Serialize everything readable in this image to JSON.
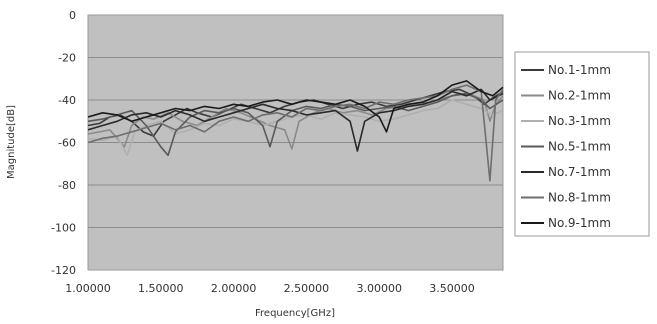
{
  "chart_data": {
    "type": "line",
    "title": "",
    "xlabel": "Frequency[GHz]",
    "ylabel": "Magnitude[dB]",
    "xlim": [
      1.0,
      3.85
    ],
    "ylim": [
      -120,
      0
    ],
    "x_ticks": [
      {
        "value": 1.0,
        "label": "1.00000"
      },
      {
        "value": 1.5,
        "label": "1.50000"
      },
      {
        "value": 2.0,
        "label": "2.00000"
      },
      {
        "value": 2.5,
        "label": "2.50000"
      },
      {
        "value": 3.0,
        "label": "3.00000"
      },
      {
        "value": 3.5,
        "label": "3.50000"
      }
    ],
    "y_ticks": [
      {
        "value": 0,
        "label": "0"
      },
      {
        "value": -20,
        "label": "-20"
      },
      {
        "value": -40,
        "label": "-40"
      },
      {
        "value": -60,
        "label": "-60"
      },
      {
        "value": -80,
        "label": "-80"
      },
      {
        "value": -100,
        "label": "-100"
      },
      {
        "value": -120,
        "label": "-120"
      }
    ],
    "grid": true,
    "legend_position": "right",
    "plot_background": "#c0c0c0",
    "series": [
      {
        "name": "No.1-1mm",
        "color": "#3a3a3a",
        "x": [
          1.0,
          1.08,
          1.15,
          1.22,
          1.3,
          1.38,
          1.45,
          1.52,
          1.6,
          1.68,
          1.75,
          1.85,
          1.95,
          2.05,
          2.15,
          2.25,
          2.35,
          2.45,
          2.55,
          2.65,
          2.75,
          2.85,
          2.95,
          3.05,
          3.15,
          3.25,
          3.35,
          3.45,
          3.55,
          3.65,
          3.72,
          3.78,
          3.85
        ],
        "y": [
          -52,
          -51,
          -48,
          -47,
          -50,
          -55,
          -57,
          -50,
          -47,
          -44,
          -46,
          -48,
          -45,
          -42,
          -44,
          -46,
          -43,
          -41,
          -40,
          -42,
          -44,
          -42,
          -41,
          -43,
          -42,
          -40,
          -38,
          -36,
          -35,
          -38,
          -42,
          -39,
          -36
        ]
      },
      {
        "name": "No.2-1mm",
        "color": "#8a8a8a",
        "x": [
          1.0,
          1.08,
          1.15,
          1.2,
          1.25,
          1.3,
          1.38,
          1.45,
          1.55,
          1.65,
          1.75,
          1.85,
          1.95,
          2.05,
          2.15,
          2.25,
          2.35,
          2.4,
          2.45,
          2.55,
          2.65,
          2.75,
          2.85,
          2.95,
          3.05,
          3.15,
          3.25,
          3.35,
          3.45,
          3.55,
          3.65,
          3.72,
          3.76,
          3.8,
          3.85
        ],
        "y": [
          -56,
          -55,
          -54,
          -58,
          -62,
          -52,
          -48,
          -49,
          -46,
          -50,
          -52,
          -48,
          -44,
          -46,
          -49,
          -52,
          -54,
          -63,
          -50,
          -46,
          -44,
          -46,
          -45,
          -47,
          -44,
          -43,
          -42,
          -41,
          -39,
          -37,
          -38,
          -40,
          -50,
          -42,
          -38
        ]
      },
      {
        "name": "No.3-1mm",
        "color": "#b0b0b0",
        "x": [
          1.0,
          1.1,
          1.2,
          1.27,
          1.32,
          1.4,
          1.5,
          1.6,
          1.7,
          1.8,
          1.9,
          2.0,
          2.1,
          2.2,
          2.3,
          2.4,
          2.5,
          2.6,
          2.7,
          2.8,
          2.9,
          3.0,
          3.1,
          3.2,
          3.3,
          3.4,
          3.5,
          3.6,
          3.7,
          3.78,
          3.85
        ],
        "y": [
          -58,
          -59,
          -57,
          -66,
          -55,
          -52,
          -50,
          -56,
          -54,
          -51,
          -52,
          -49,
          -50,
          -52,
          -50,
          -48,
          -47,
          -49,
          -46,
          -47,
          -48,
          -50,
          -49,
          -47,
          -45,
          -44,
          -40,
          -42,
          -44,
          -47,
          -45
        ]
      },
      {
        "name": "No.5-1mm",
        "color": "#5a5a5a",
        "x": [
          1.0,
          1.1,
          1.2,
          1.3,
          1.4,
          1.5,
          1.55,
          1.6,
          1.7,
          1.8,
          1.9,
          2.0,
          2.1,
          2.2,
          2.25,
          2.3,
          2.4,
          2.5,
          2.6,
          2.7,
          2.8,
          2.9,
          3.0,
          3.1,
          3.2,
          3.3,
          3.4,
          3.5,
          3.6,
          3.7,
          3.76,
          3.85
        ],
        "y": [
          -50,
          -49,
          -47,
          -45,
          -52,
          -62,
          -66,
          -55,
          -48,
          -45,
          -46,
          -44,
          -46,
          -52,
          -62,
          -50,
          -45,
          -43,
          -44,
          -42,
          -43,
          -45,
          -44,
          -43,
          -45,
          -43,
          -41,
          -38,
          -37,
          -40,
          -44,
          -40
        ]
      },
      {
        "name": "No.7-1mm",
        "color": "#2a2a2a",
        "x": [
          1.0,
          1.1,
          1.2,
          1.3,
          1.4,
          1.5,
          1.6,
          1.7,
          1.8,
          1.9,
          2.0,
          2.1,
          2.2,
          2.3,
          2.4,
          2.5,
          2.6,
          2.7,
          2.8,
          2.85,
          2.9,
          3.0,
          3.1,
          3.2,
          3.3,
          3.4,
          3.5,
          3.6,
          3.7,
          3.76,
          3.85
        ],
        "y": [
          -54,
          -52,
          -50,
          -47,
          -46,
          -48,
          -45,
          -47,
          -50,
          -48,
          -46,
          -44,
          -42,
          -44,
          -45,
          -47,
          -46,
          -45,
          -50,
          -64,
          -50,
          -46,
          -45,
          -43,
          -42,
          -40,
          -36,
          -38,
          -35,
          -40,
          -37
        ]
      },
      {
        "name": "No.8-1mm",
        "color": "#6e6e6e",
        "x": [
          1.0,
          1.1,
          1.2,
          1.3,
          1.4,
          1.5,
          1.6,
          1.7,
          1.8,
          1.9,
          2.0,
          2.1,
          2.2,
          2.3,
          2.4,
          2.5,
          2.6,
          2.7,
          2.8,
          2.9,
          3.0,
          3.1,
          3.2,
          3.3,
          3.4,
          3.5,
          3.6,
          3.7,
          3.76,
          3.8,
          3.85
        ],
        "y": [
          -60,
          -58,
          -57,
          -55,
          -53,
          -51,
          -54,
          -52,
          -55,
          -50,
          -48,
          -50,
          -47,
          -46,
          -48,
          -44,
          -45,
          -43,
          -42,
          -44,
          -41,
          -42,
          -40,
          -39,
          -38,
          -35,
          -33,
          -36,
          -78,
          -40,
          -35
        ]
      },
      {
        "name": "No.9-1mm",
        "color": "#1a1a1a",
        "x": [
          1.0,
          1.1,
          1.2,
          1.3,
          1.4,
          1.5,
          1.6,
          1.7,
          1.8,
          1.9,
          2.0,
          2.1,
          2.2,
          2.3,
          2.4,
          2.5,
          2.6,
          2.7,
          2.8,
          2.9,
          3.0,
          3.05,
          3.1,
          3.2,
          3.3,
          3.4,
          3.5,
          3.6,
          3.7,
          3.78,
          3.85
        ],
        "y": [
          -48,
          -46,
          -47,
          -50,
          -48,
          -46,
          -44,
          -45,
          -43,
          -44,
          -42,
          -43,
          -41,
          -40,
          -42,
          -40,
          -41,
          -42,
          -40,
          -43,
          -48,
          -55,
          -44,
          -42,
          -41,
          -38,
          -33,
          -31,
          -36,
          -38,
          -34
        ]
      }
    ]
  }
}
